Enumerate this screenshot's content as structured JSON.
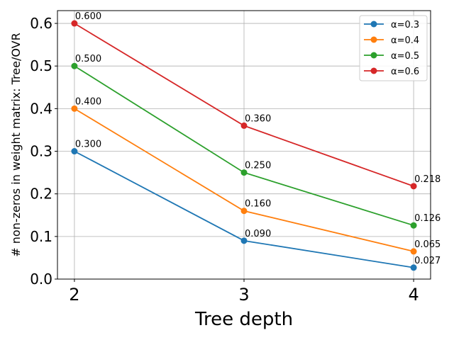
{
  "chart_data": {
    "type": "line",
    "title": "",
    "xlabel": "Tree depth",
    "ylabel": "# non-zeros in weight matrix: Tree/OVR",
    "x": [
      2,
      3,
      4
    ],
    "xlim": [
      1.9,
      4.1
    ],
    "ylim": [
      0.0,
      0.63
    ],
    "yticks": [
      "0.0",
      "0.1",
      "0.2",
      "0.3",
      "0.4",
      "0.5",
      "0.6"
    ],
    "xticks": [
      "2",
      "3",
      "4"
    ],
    "grid": true,
    "legend_position": "top-right",
    "series": [
      {
        "name": "α=0.3",
        "color": "#1f77b4",
        "values": [
          0.3,
          0.09,
          0.027
        ],
        "labels": [
          "0.300",
          "0.090",
          "0.027"
        ]
      },
      {
        "name": "α=0.4",
        "color": "#ff7f0e",
        "values": [
          0.4,
          0.16,
          0.065
        ],
        "labels": [
          "0.400",
          "0.160",
          "0.065"
        ]
      },
      {
        "name": "α=0.5",
        "color": "#2ca02c",
        "values": [
          0.5,
          0.25,
          0.126
        ],
        "labels": [
          "0.500",
          "0.250",
          "0.126"
        ]
      },
      {
        "name": "α=0.6",
        "color": "#d62728",
        "values": [
          0.6,
          0.36,
          0.218
        ],
        "labels": [
          "0.600",
          "0.360",
          "0.218"
        ]
      }
    ]
  }
}
